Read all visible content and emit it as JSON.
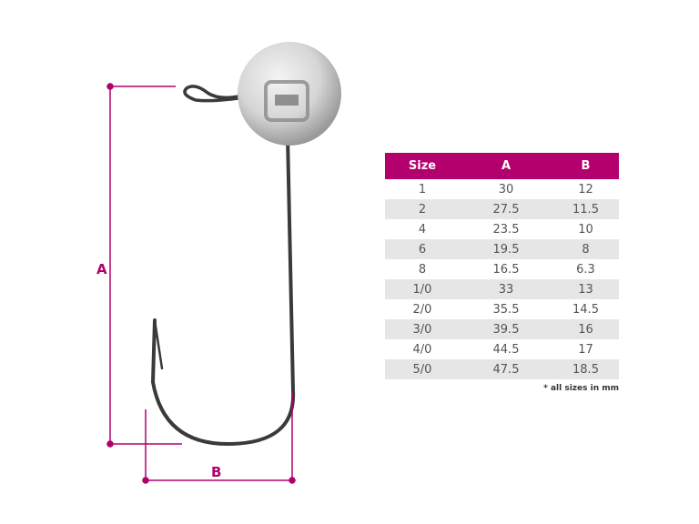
{
  "dimensions": {
    "a_label": "A",
    "b_label": "B"
  },
  "accent_color": "#b4006d",
  "table": {
    "headers": [
      "Size",
      "A",
      "B"
    ],
    "rows": [
      [
        "1",
        "30",
        "12"
      ],
      [
        "2",
        "27.5",
        "11.5"
      ],
      [
        "4",
        "23.5",
        "10"
      ],
      [
        "6",
        "19.5",
        "8"
      ],
      [
        "8",
        "16.5",
        "6.3"
      ],
      [
        "1/0",
        "33",
        "13"
      ],
      [
        "2/0",
        "35.5",
        "14.5"
      ],
      [
        "3/0",
        "39.5",
        "16"
      ],
      [
        "4/0",
        "44.5",
        "17"
      ],
      [
        "5/0",
        "47.5",
        "18.5"
      ]
    ],
    "note": "* all sizes in mm"
  }
}
